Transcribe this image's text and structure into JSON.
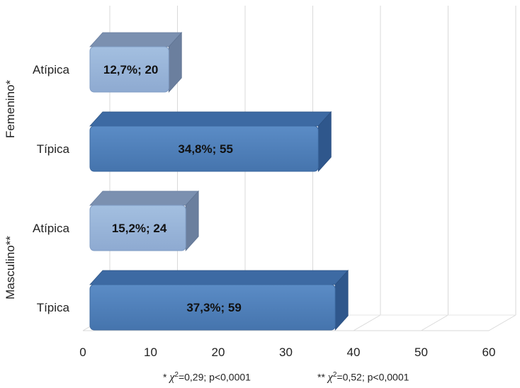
{
  "chart_data": {
    "type": "bar",
    "orientation": "horizontal",
    "xlim": [
      0,
      60
    ],
    "xticks": [
      "0",
      "10",
      "20",
      "30",
      "40",
      "50",
      "60"
    ],
    "grid": true,
    "groups": [
      {
        "name": "Femenino*",
        "bars": [
          {
            "category": "Atípica",
            "value": 12.7,
            "label": "12,7%;  20",
            "color": "#95b3d7"
          },
          {
            "category": "Típica",
            "value": 34.8,
            "label": "34,8%;  55",
            "color": "#4f81bd"
          }
        ]
      },
      {
        "name": "Masculino**",
        "bars": [
          {
            "category": "Atípica",
            "value": 15.2,
            "label": "15,2%;  24",
            "color": "#95b3d7"
          },
          {
            "category": "Típica",
            "value": 37.3,
            "label": "37,3%;  59",
            "color": "#4f81bd"
          }
        ]
      }
    ]
  },
  "footnotes": {
    "f1_mark": "*",
    "f1_symbol": "χ",
    "f1_sup": "2",
    "f1_rest": "=0,29; p<0,0001",
    "f2_mark": "**",
    "f2_symbol": "χ",
    "f2_sup": "2",
    "f2_rest": "=0,52; p<0,0001"
  }
}
